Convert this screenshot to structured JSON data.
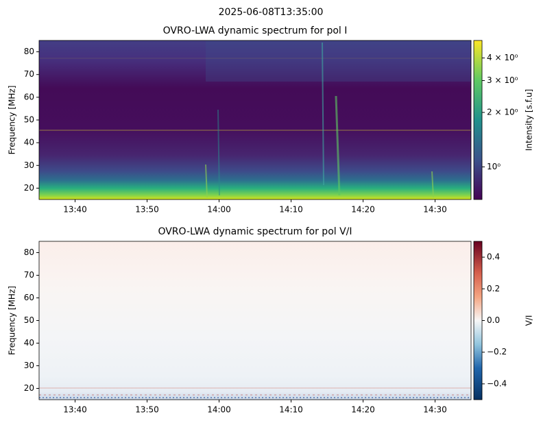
{
  "suptitle": "2025-06-08T13:35:00",
  "chart_data": [
    {
      "type": "heatmap",
      "title": "OVRO-LWA dynamic spectrum for pol I",
      "ylabel": "Frequency [MHz]",
      "xlim": [
        "13:35",
        "14:35"
      ],
      "xticks": [
        "13:40",
        "13:50",
        "14:00",
        "14:10",
        "14:20",
        "14:30"
      ],
      "ylim": [
        15,
        85
      ],
      "yticks": [
        20,
        30,
        40,
        50,
        60,
        70,
        80
      ],
      "colormap": "viridis",
      "colorbar_scale": "log",
      "colorbar_label": "Intensity [s.f.u]",
      "clim": [
        0.66,
        5.0
      ],
      "cticks": [
        {
          "value": 4,
          "label": "4 × 10⁰"
        },
        {
          "value": 3,
          "label": "3 × 10⁰"
        },
        {
          "value": 2,
          "label": "2 × 10⁰"
        },
        {
          "value": 1,
          "label": "10⁰"
        }
      ]
    },
    {
      "type": "heatmap",
      "title": "OVRO-LWA dynamic spectrum for pol V/I",
      "ylabel": "Frequency [MHz]",
      "xlim": [
        "13:35",
        "14:35"
      ],
      "xticks": [
        "13:40",
        "13:50",
        "14:00",
        "14:10",
        "14:20",
        "14:30"
      ],
      "ylim": [
        15,
        85
      ],
      "yticks": [
        20,
        30,
        40,
        50,
        60,
        70,
        80
      ],
      "colormap": "RdBu_r",
      "colorbar_scale": "linear",
      "colorbar_label": "V/I",
      "clim": [
        -0.5,
        0.5
      ],
      "cticks": [
        0.4,
        0.2,
        {
          "value": 0,
          "label": "0.0"
        },
        {
          "value": -0.2,
          "label": "−0.2"
        },
        {
          "value": -0.4,
          "label": "−0.4"
        }
      ]
    }
  ]
}
